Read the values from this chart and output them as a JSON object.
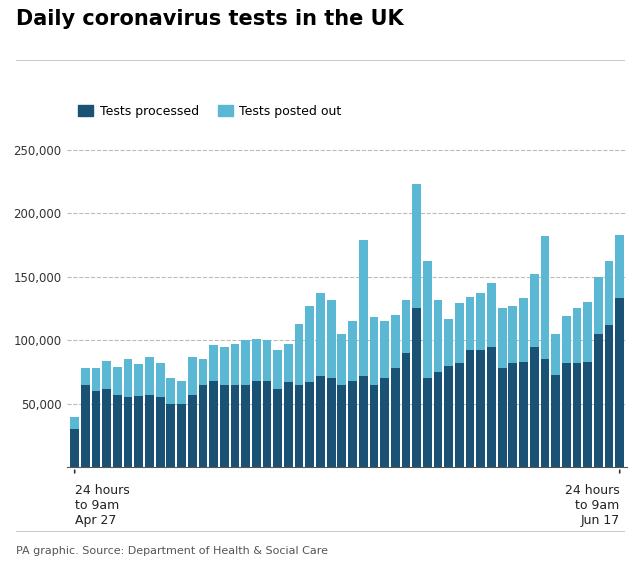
{
  "title": "Daily coronavirus tests in the UK",
  "source": "PA graphic. Source: Department of Health & Social Care",
  "legend_processed": "Tests processed",
  "legend_posted": "Tests posted out",
  "color_processed": "#1a5276",
  "color_posted": "#5bb8d4",
  "ylim": [
    0,
    260000
  ],
  "yticks": [
    50000,
    100000,
    150000,
    200000,
    250000
  ],
  "ytick_labels": [
    "50,000",
    "100,000",
    "150,000",
    "200,000",
    "250,000"
  ],
  "processed": [
    30000,
    65000,
    60000,
    62000,
    57000,
    55000,
    56000,
    57000,
    55000,
    50000,
    50000,
    57000,
    65000,
    68000,
    65000,
    65000,
    65000,
    68000,
    68000,
    62000,
    67000,
    65000,
    67000,
    72000,
    70000,
    65000,
    68000,
    72000,
    65000,
    70000,
    78000,
    90000,
    125000,
    70000,
    75000,
    80000,
    82000,
    92000,
    92000,
    95000,
    78000,
    82000,
    83000,
    95000,
    85000,
    73000,
    82000,
    82000,
    83000,
    105000,
    112000,
    133000
  ],
  "posted": [
    10000,
    13000,
    18000,
    22000,
    22000,
    30000,
    25000,
    30000,
    27000,
    20000,
    18000,
    30000,
    20000,
    28000,
    30000,
    32000,
    35000,
    33000,
    32000,
    30000,
    30000,
    48000,
    60000,
    65000,
    62000,
    40000,
    47000,
    107000,
    53000,
    45000,
    42000,
    42000,
    98000,
    92000,
    57000,
    37000,
    47000,
    42000,
    45000,
    50000,
    47000,
    45000,
    50000,
    57000,
    97000,
    32000,
    37000,
    43000,
    47000,
    45000,
    50000,
    50000
  ],
  "n_bars": 52,
  "x_annot_left": {
    "x": 0,
    "label": "24 hours\nto 9am\nApr 27"
  },
  "x_annot_right": {
    "x": 51,
    "label": "24 hours\nto 9am\nJun 17"
  }
}
